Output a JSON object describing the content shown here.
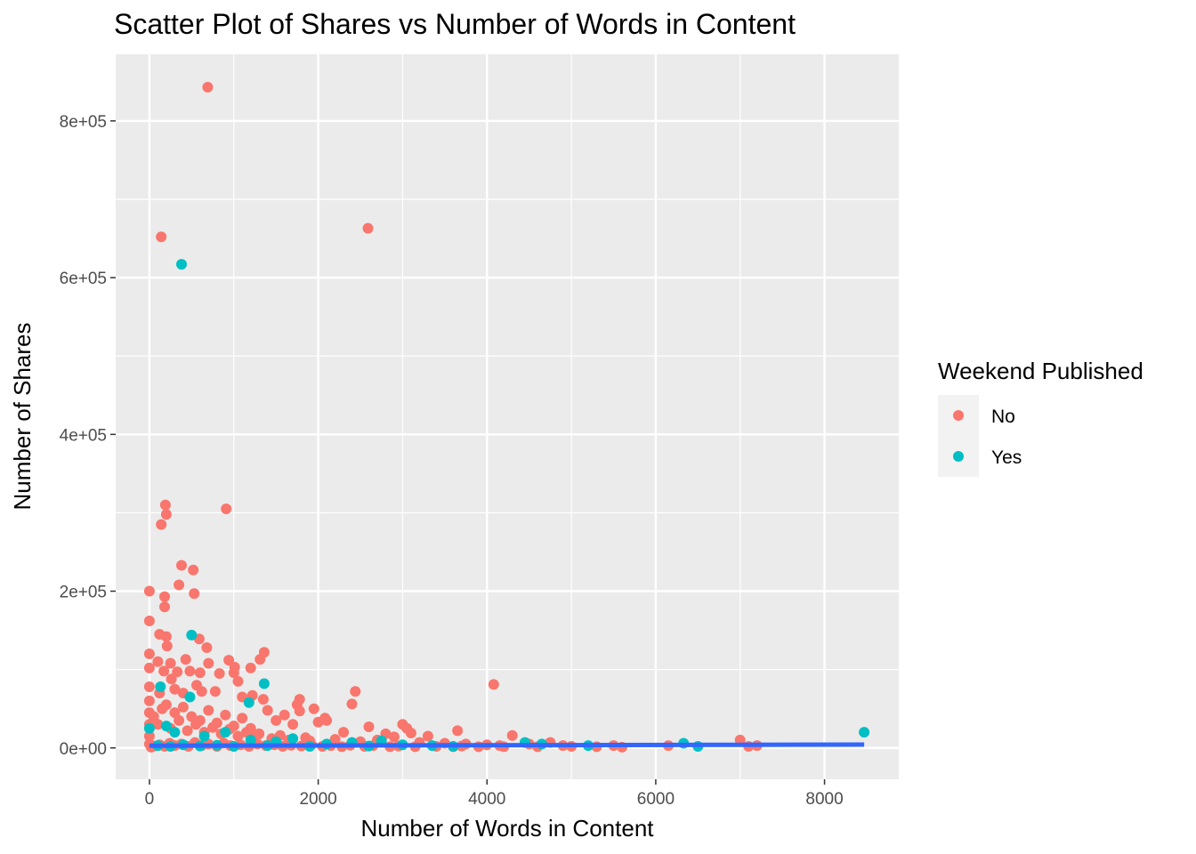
{
  "chart_data": {
    "type": "scatter",
    "title": "Scatter Plot of Shares vs Number of Words in Content",
    "xlabel": "Number of Words in Content",
    "ylabel": "Number of Shares",
    "xlim": [
      -400,
      8880
    ],
    "ylim": [
      -40000,
      885000
    ],
    "x_ticks": [
      0,
      2000,
      4000,
      6000,
      8000
    ],
    "x_tick_labels": [
      "0",
      "2000",
      "4000",
      "6000",
      "8000"
    ],
    "y_ticks": [
      0,
      200000,
      400000,
      600000,
      800000
    ],
    "y_tick_labels": [
      "0e+00",
      "2e+05",
      "4e+05",
      "6e+05",
      "8e+05"
    ],
    "grid": true,
    "legend": {
      "title": "Weekend Published",
      "position": "right",
      "entries": [
        "No",
        "Yes"
      ]
    },
    "colors": {
      "No": "#F8766D",
      "Yes": "#00BFC4",
      "trend": "#3366FF",
      "panel": "#EBEBEB",
      "grid": "#FFFFFF"
    },
    "series": [
      {
        "name": "No",
        "points": [
          [
            690,
            843000
          ],
          [
            140,
            652000
          ],
          [
            2590,
            663000
          ],
          [
            190,
            310000
          ],
          [
            140,
            285000
          ],
          [
            200,
            298000
          ],
          [
            910,
            305000
          ],
          [
            380,
            233000
          ],
          [
            520,
            227000
          ],
          [
            350,
            208000
          ],
          [
            0,
            200000
          ],
          [
            180,
            193000
          ],
          [
            530,
            197000
          ],
          [
            0,
            162000
          ],
          [
            180,
            180000
          ],
          [
            120,
            145000
          ],
          [
            200,
            142000
          ],
          [
            590,
            139000
          ],
          [
            680,
            128000
          ],
          [
            1360,
            122000
          ],
          [
            210,
            130000
          ],
          [
            0,
            120000
          ],
          [
            100,
            110000
          ],
          [
            250,
            108000
          ],
          [
            430,
            113000
          ],
          [
            480,
            98000
          ],
          [
            700,
            108000
          ],
          [
            940,
            112000
          ],
          [
            1010,
            103000
          ],
          [
            1200,
            102000
          ],
          [
            1310,
            113000
          ],
          [
            0,
            102000
          ],
          [
            170,
            98000
          ],
          [
            260,
            88000
          ],
          [
            330,
            97000
          ],
          [
            600,
            96000
          ],
          [
            830,
            95000
          ],
          [
            1050,
            85000
          ],
          [
            1000,
            96000
          ],
          [
            4080,
            81000
          ],
          [
            2440,
            72000
          ],
          [
            1780,
            62000
          ],
          [
            0,
            78000
          ],
          [
            120,
            70000
          ],
          [
            300,
            75000
          ],
          [
            400,
            70000
          ],
          [
            560,
            80000
          ],
          [
            620,
            72000
          ],
          [
            780,
            72000
          ],
          [
            1100,
            65000
          ],
          [
            1350,
            62000
          ],
          [
            1220,
            67000
          ],
          [
            1400,
            48000
          ],
          [
            1750,
            55000
          ],
          [
            1780,
            47000
          ],
          [
            1950,
            50000
          ],
          [
            2080,
            38000
          ],
          [
            2400,
            56000
          ],
          [
            1600,
            42000
          ],
          [
            1500,
            35000
          ],
          [
            1700,
            30000
          ],
          [
            2000,
            33000
          ],
          [
            2100,
            35000
          ],
          [
            2300,
            20000
          ],
          [
            2600,
            27000
          ],
          [
            3000,
            30000
          ],
          [
            3050,
            25000
          ],
          [
            3100,
            19000
          ],
          [
            3300,
            15000
          ],
          [
            3650,
            22000
          ],
          [
            4300,
            16000
          ],
          [
            2800,
            18000
          ],
          [
            2900,
            14000
          ],
          [
            200,
            55000
          ],
          [
            300,
            45000
          ],
          [
            400,
            52000
          ],
          [
            500,
            40000
          ],
          [
            600,
            35000
          ],
          [
            700,
            48000
          ],
          [
            800,
            32000
          ],
          [
            900,
            42000
          ],
          [
            1000,
            28000
          ],
          [
            1100,
            38000
          ],
          [
            1200,
            25000
          ],
          [
            50,
            40000
          ],
          [
            100,
            30000
          ],
          [
            150,
            50000
          ],
          [
            250,
            25000
          ],
          [
            350,
            35000
          ],
          [
            450,
            22000
          ],
          [
            550,
            30000
          ],
          [
            650,
            20000
          ],
          [
            750,
            26000
          ],
          [
            850,
            18000
          ],
          [
            950,
            24000
          ],
          [
            1050,
            15000
          ],
          [
            1150,
            20000
          ],
          [
            1250,
            14000
          ],
          [
            1300,
            18000
          ],
          [
            1450,
            12000
          ],
          [
            1550,
            16000
          ],
          [
            1650,
            10000
          ],
          [
            1850,
            13000
          ],
          [
            1900,
            9000
          ],
          [
            2200,
            11000
          ],
          [
            2500,
            8000
          ],
          [
            2700,
            10000
          ],
          [
            3200,
            7000
          ],
          [
            3500,
            6000
          ],
          [
            3750,
            5000
          ],
          [
            4000,
            4000
          ],
          [
            4150,
            3000
          ],
          [
            4500,
            5000
          ],
          [
            4750,
            7000
          ],
          [
            4900,
            3000
          ],
          [
            5000,
            2000
          ],
          [
            5500,
            3000
          ],
          [
            6150,
            3000
          ],
          [
            7000,
            10000
          ],
          [
            7100,
            2000
          ],
          [
            7200,
            3000
          ],
          [
            0,
            60000
          ],
          [
            0,
            45000
          ],
          [
            0,
            30000
          ],
          [
            0,
            15000
          ],
          [
            0,
            5000
          ],
          [
            20,
            1000
          ],
          [
            60,
            2500
          ],
          [
            120,
            4000
          ],
          [
            180,
            2000
          ],
          [
            240,
            6000
          ],
          [
            300,
            3000
          ],
          [
            380,
            5000
          ],
          [
            460,
            2000
          ],
          [
            540,
            7000
          ],
          [
            620,
            3000
          ],
          [
            700,
            5000
          ],
          [
            800,
            2000
          ],
          [
            880,
            6000
          ],
          [
            960,
            3000
          ],
          [
            1080,
            4000
          ],
          [
            1180,
            2000
          ],
          [
            1280,
            5000
          ],
          [
            1380,
            3000
          ],
          [
            1480,
            4000
          ],
          [
            1580,
            2000
          ],
          [
            1680,
            3500
          ],
          [
            1800,
            2500
          ],
          [
            1920,
            4000
          ],
          [
            2050,
            2000
          ],
          [
            2150,
            3000
          ],
          [
            2280,
            1500
          ],
          [
            2380,
            3500
          ],
          [
            2550,
            2000
          ],
          [
            2650,
            3000
          ],
          [
            2850,
            1500
          ],
          [
            2950,
            2500
          ],
          [
            3150,
            1500
          ],
          [
            3400,
            2000
          ],
          [
            3600,
            1500
          ],
          [
            3700,
            2500
          ],
          [
            3900,
            1500
          ],
          [
            4200,
            1500
          ],
          [
            4600,
            1500
          ],
          [
            5300,
            1500
          ],
          [
            5600,
            1000
          ]
        ]
      },
      {
        "name": "Yes",
        "points": [
          [
            380,
            617000
          ],
          [
            500,
            144000
          ],
          [
            1360,
            82000
          ],
          [
            130,
            78000
          ],
          [
            480,
            65000
          ],
          [
            1180,
            58000
          ],
          [
            0,
            25000
          ],
          [
            200,
            28000
          ],
          [
            300,
            20000
          ],
          [
            650,
            15000
          ],
          [
            900,
            20000
          ],
          [
            1200,
            10000
          ],
          [
            1500,
            8000
          ],
          [
            1700,
            12000
          ],
          [
            2100,
            5000
          ],
          [
            2400,
            7000
          ],
          [
            2750,
            9000
          ],
          [
            3000,
            4000
          ],
          [
            3350,
            3000
          ],
          [
            4450,
            7000
          ],
          [
            4650,
            5000
          ],
          [
            5200,
            3000
          ],
          [
            6330,
            6000
          ],
          [
            6500,
            2000
          ],
          [
            8470,
            20000
          ],
          [
            100,
            3000
          ],
          [
            250,
            2000
          ],
          [
            400,
            4000
          ],
          [
            600,
            2500
          ],
          [
            800,
            3500
          ],
          [
            1000,
            2000
          ],
          [
            1400,
            3000
          ],
          [
            1900,
            2000
          ],
          [
            2600,
            2500
          ],
          [
            3600,
            2000
          ]
        ]
      }
    ],
    "trend_line": {
      "x": [
        0,
        8470
      ],
      "y": [
        2800,
        4200
      ]
    }
  }
}
